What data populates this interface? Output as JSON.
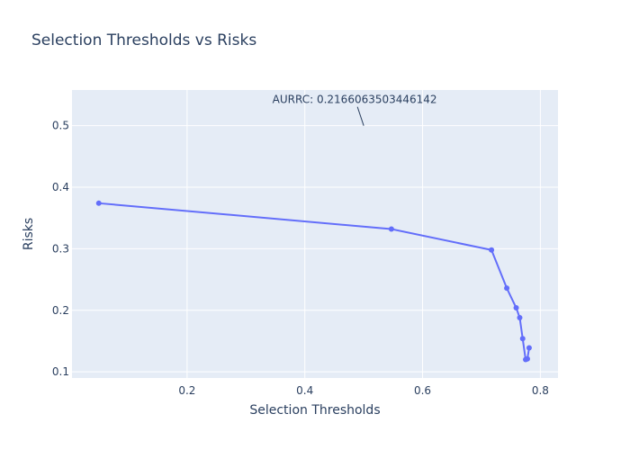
{
  "chart_data": {
    "type": "line",
    "title": "Selection Thresholds vs Risks",
    "xlabel": "Selection Thresholds",
    "ylabel": "Risks",
    "xlim": [
      0.0045,
      0.83
    ],
    "ylim": [
      0.09,
      0.558
    ],
    "x_ticks": [
      0.2,
      0.4,
      0.6,
      0.8
    ],
    "x_tick_labels": [
      "0.2",
      "0.4",
      "0.6",
      "0.8"
    ],
    "y_ticks": [
      0.1,
      0.2,
      0.3,
      0.4,
      0.5
    ],
    "y_tick_labels": [
      "0.1",
      "0.2",
      "0.3",
      "0.4",
      "0.5"
    ],
    "grid": true,
    "series": [
      {
        "mode": "lines+markers",
        "color": "#636efa",
        "x": [
          0.05,
          0.547,
          0.717,
          0.743,
          0.759,
          0.765,
          0.77,
          0.775,
          0.778,
          0.781
        ],
        "y": [
          0.374,
          0.332,
          0.298,
          0.236,
          0.204,
          0.188,
          0.154,
          0.12,
          0.121,
          0.139
        ]
      }
    ],
    "annotation": {
      "text": "AURRC: 0.2166063503446142",
      "x": 0.5,
      "y": 0.5
    }
  },
  "colors": {
    "plot_bg": "#e5ecf6",
    "grid": "#ffffff",
    "text": "#2a3f5f",
    "line": "#636efa"
  }
}
